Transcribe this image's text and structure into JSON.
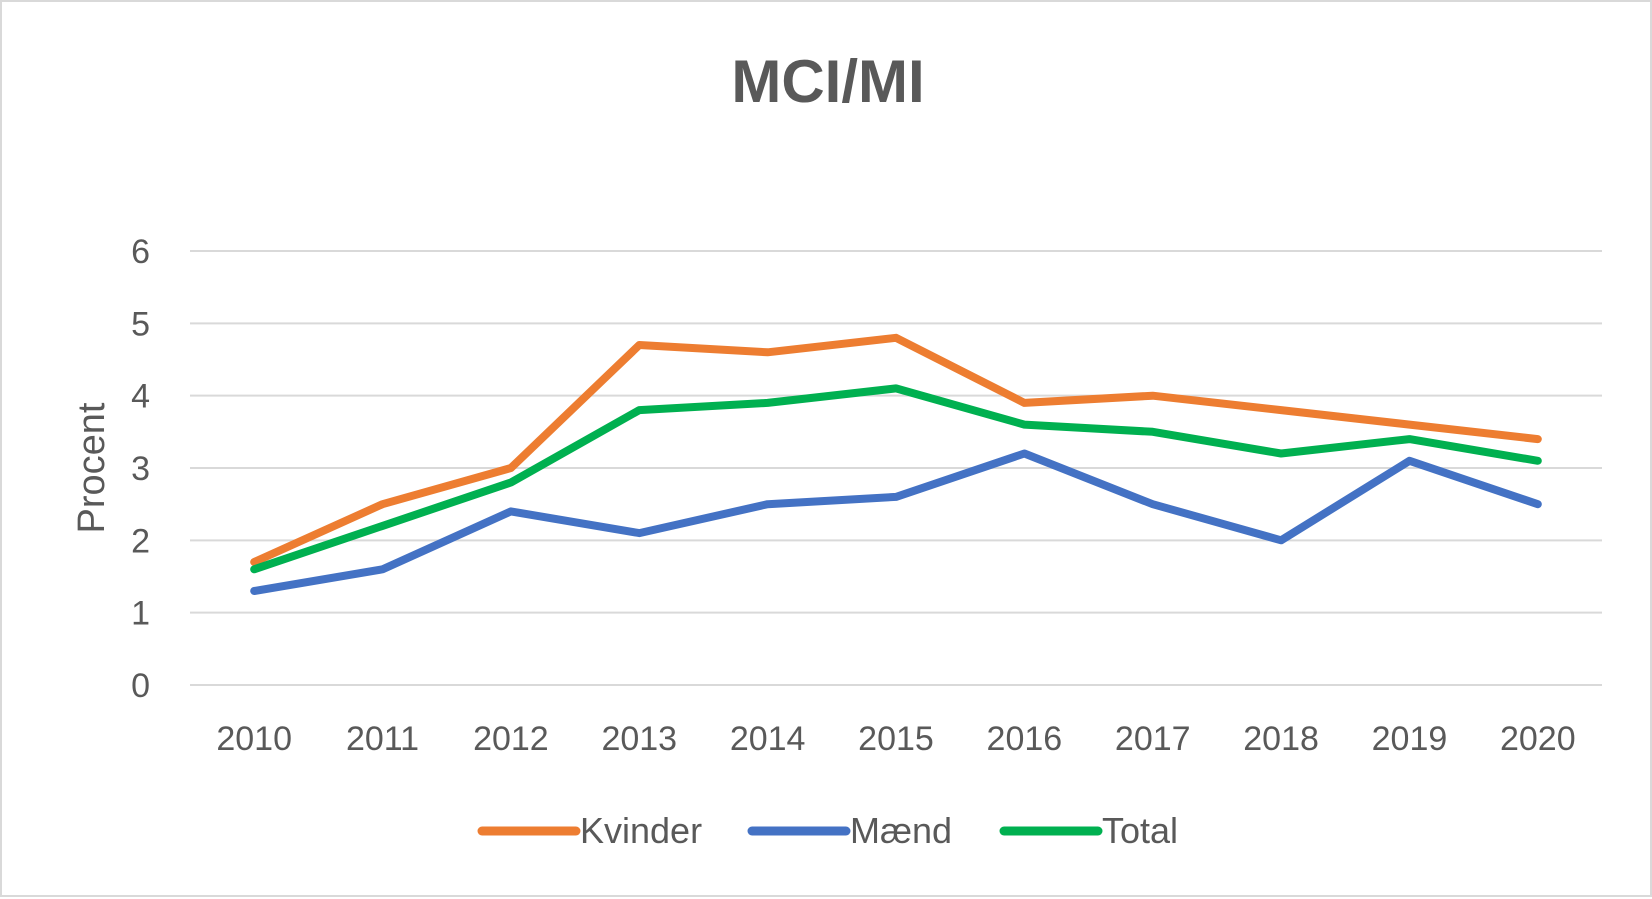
{
  "chart_data": {
    "type": "line",
    "title": "MCI/MI",
    "ylabel": "Procent",
    "xlabel": "",
    "categories": [
      "2010",
      "2011",
      "2012",
      "2013",
      "2014",
      "2015",
      "2016",
      "2017",
      "2018",
      "2019",
      "2020"
    ],
    "ylim": [
      0,
      6
    ],
    "yticks": [
      "0",
      "1",
      "2",
      "3",
      "4",
      "5",
      "6"
    ],
    "grid": true,
    "legend_position": "bottom",
    "series": [
      {
        "name": "Kvinder",
        "color": "#ed7d31",
        "values": [
          1.7,
          2.5,
          3.0,
          4.7,
          4.6,
          4.8,
          3.9,
          4.0,
          3.8,
          3.6,
          3.4
        ]
      },
      {
        "name": "Mænd",
        "color": "#4472c4",
        "values": [
          1.3,
          1.6,
          2.4,
          2.1,
          2.5,
          2.6,
          3.2,
          2.5,
          2.0,
          3.1,
          2.5
        ]
      },
      {
        "name": "Total",
        "color": "#00b050",
        "values": [
          1.6,
          2.2,
          2.8,
          3.8,
          3.9,
          4.1,
          3.6,
          3.5,
          3.2,
          3.4,
          3.1
        ]
      }
    ]
  }
}
